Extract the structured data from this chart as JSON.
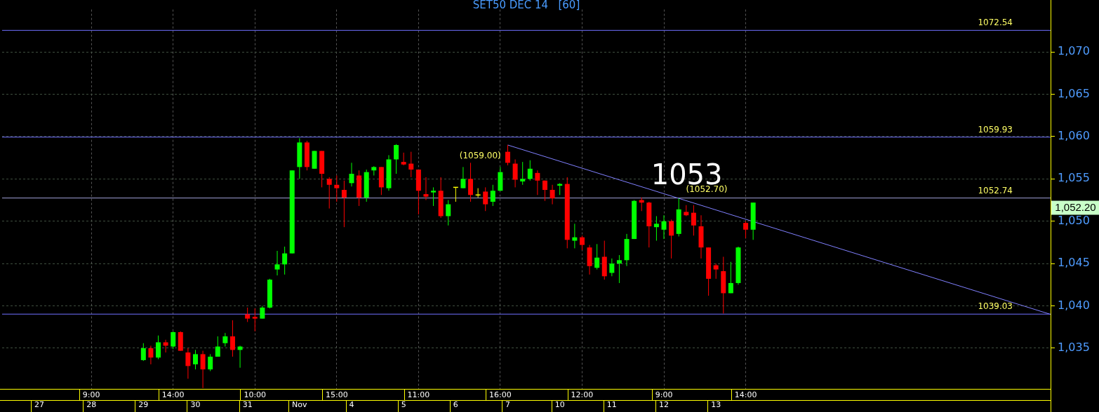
{
  "chart_data": {
    "type": "candlestick",
    "title": "SET50 DEC 14   [60]",
    "categories": [
      null,
      null,
      null,
      null,
      null,
      "\n27",
      null,
      null,
      null,
      null,
      null,
      null,
      "9:00\n28",
      null,
      null,
      null,
      null,
      null,
      null,
      "\n29",
      null,
      null,
      null,
      "14:00",
      null,
      null,
      "\n30",
      null,
      null,
      null,
      null,
      null,
      null,
      "\n31",
      "10:00",
      null,
      null,
      null,
      null,
      null,
      "\nNov",
      null,
      null,
      null,
      null,
      "15:00",
      null,
      "\n4",
      null,
      null,
      null,
      null,
      null,
      null,
      "\n5",
      null,
      "11:00",
      null,
      null,
      null,
      null,
      "\n6",
      null,
      null,
      null,
      null,
      null,
      "16:00",
      "\n7",
      null,
      null,
      null,
      null,
      null,
      null,
      "\n10",
      null,
      null,
      "12:00",
      null,
      null,
      null,
      "\n11",
      null,
      null,
      null,
      null,
      null,
      null,
      "9:00\n12",
      null,
      null,
      null,
      null,
      null,
      null,
      "\n13",
      null,
      null,
      null,
      "14:00",
      null,
      null,
      null,
      null,
      null,
      null,
      null,
      null,
      null,
      null,
      null,
      null,
      null,
      null,
      null,
      null,
      null,
      null,
      null,
      null,
      null,
      null,
      null,
      null,
      null,
      null,
      null,
      null,
      null,
      null,
      null,
      null,
      null,
      null,
      null,
      null,
      null,
      null,
      null,
      null,
      null
    ],
    "series": [
      {
        "type": "line",
        "color": "#8080ff",
        "values": [
          null,
          null,
          null,
          null,
          null,
          null,
          null,
          null,
          null,
          null,
          null,
          null,
          null,
          null,
          null,
          null,
          null,
          null,
          null,
          null,
          null,
          null,
          null,
          null,
          null,
          null,
          null,
          null,
          null,
          null,
          null,
          null,
          null,
          null,
          null,
          null,
          null,
          null,
          null,
          null,
          null,
          null,
          null,
          null,
          null,
          null,
          null,
          null,
          null,
          null,
          null,
          null,
          null,
          null,
          null,
          null,
          null,
          null,
          null,
          null,
          null,
          null,
          null,
          null,
          null,
          null,
          null,
          null,
          1059.0,
          null,
          null,
          null,
          null,
          null,
          null,
          null,
          null,
          null,
          null,
          null,
          null,
          null,
          null,
          null,
          null,
          null,
          null,
          null,
          null,
          null,
          null,
          null,
          null,
          null,
          null,
          null,
          null,
          null,
          null,
          null,
          null,
          null,
          null,
          null,
          null,
          null,
          null,
          null,
          null,
          null,
          null,
          null,
          null,
          null,
          null,
          null,
          null,
          null,
          null,
          null,
          null,
          null,
          null,
          null,
          null,
          null,
          null,
          null,
          null,
          null,
          null,
          null,
          null,
          null,
          null,
          null,
          null,
          null,
          null,
          null,
          null,
          1039.0
        ]
      },
      {
        "type": "candlestick",
        "ohlc": [
          null,
          null,
          null,
          null,
          null,
          null,
          null,
          null,
          null,
          null,
          null,
          null,
          null,
          null,
          null,
          null,
          null,
          null,
          null,
          [
            1033.6,
            1035.6,
            1033.5,
            1035.0
          ],
          [
            1035.0,
            1035.3,
            1033.1,
            1033.9
          ],
          [
            1033.9,
            1036.5,
            1033.7,
            1035.7
          ],
          [
            1035.7,
            1036.0,
            1034.5,
            1035.3
          ],
          [
            1035.2,
            1037.0,
            1034.9,
            1036.9
          ],
          [
            1036.9,
            1037.0,
            1034.7,
            1034.7
          ],
          [
            1034.5,
            1035.0,
            1031.4,
            1032.9
          ],
          [
            1033.1,
            1034.8,
            1032.5,
            1034.3
          ],
          [
            1034.3,
            1034.7,
            1030.3,
            1032.5
          ],
          [
            1032.5,
            1034.3,
            1032.3,
            1034.0
          ],
          [
            1034.0,
            1036.4,
            1034.0,
            1035.2
          ],
          [
            1035.6,
            1036.8,
            1035.2,
            1036.4
          ],
          [
            1036.4,
            1038.3,
            1034.0,
            1034.8
          ],
          [
            1034.8,
            1035.3,
            1032.7,
            1035.2
          ],
          [
            1039.0,
            1039.8,
            1038.1,
            1038.5
          ],
          [
            1038.7,
            1039.7,
            1037.0,
            1038.5
          ],
          [
            1038.5,
            1040.0,
            1038.5,
            1039.8
          ],
          [
            1039.8,
            1043.2,
            1039.7,
            1043.1
          ],
          [
            1044.3,
            1046.5,
            1043.6,
            1044.9
          ],
          [
            1044.9,
            1047.0,
            1043.7,
            1046.2
          ],
          [
            1046.2,
            1056.0,
            1046.2,
            1056.0
          ],
          [
            1056.4,
            1059.8,
            1055.0,
            1059.3
          ],
          [
            1059.3,
            1059.5,
            1056.0,
            1056.4
          ],
          [
            1056.2,
            1058.3,
            1056.2,
            1058.3
          ],
          [
            1058.3,
            1058.3,
            1054.0,
            1055.6
          ],
          [
            1055.0,
            1055.2,
            1051.5,
            1054.3
          ],
          [
            1054.3,
            1055.4,
            1052.3,
            1053.9
          ],
          [
            1053.7,
            1054.8,
            1049.3,
            1052.8
          ],
          [
            1054.5,
            1056.9,
            1054.1,
            1055.6
          ],
          [
            1055.4,
            1056.0,
            1051.8,
            1052.8
          ],
          [
            1052.8,
            1056.1,
            1052.3,
            1055.8
          ],
          [
            1056.0,
            1056.5,
            1055.4,
            1056.4
          ],
          [
            1056.4,
            1056.4,
            1053.1,
            1054.0
          ],
          [
            1053.9,
            1057.8,
            1053.6,
            1057.3
          ],
          [
            1057.3,
            1059.1,
            1055.6,
            1059.0
          ],
          [
            1057.0,
            1058.1,
            1056.6,
            1056.7
          ],
          [
            1056.8,
            1058.2,
            1055.2,
            1056.1
          ],
          [
            1056.1,
            1056.1,
            1050.8,
            1053.6
          ],
          [
            1053.2,
            1055.2,
            1052.5,
            1052.9
          ],
          [
            1053.4,
            1054.0,
            1051.8,
            1053.6
          ],
          [
            1053.6,
            1055.2,
            1050.4,
            1050.6
          ],
          [
            1050.6,
            1052.5,
            1049.5,
            1052.0
          ],
          [
            1054.0,
            1054.0,
            1052.3,
            1054.0
          ],
          [
            1053.9,
            1056.4,
            1053.9,
            1055.0
          ],
          [
            1055.0,
            1056.9,
            1052.3,
            1053.1
          ],
          [
            1053.1,
            1053.9,
            1052.8,
            1053.1
          ],
          [
            1053.5,
            1054.0,
            1051.2,
            1052.0
          ],
          [
            1052.3,
            1054.3,
            1051.8,
            1053.6
          ],
          [
            1053.6,
            1056.4,
            1053.6,
            1055.8
          ],
          [
            1058.2,
            1059.0,
            1056.6,
            1056.9
          ],
          [
            1056.8,
            1057.3,
            1054.0,
            1054.9
          ],
          [
            1054.7,
            1057.0,
            1054.3,
            1055.0
          ],
          [
            1055.0,
            1057.2,
            1054.8,
            1056.2
          ],
          [
            1055.7,
            1056.0,
            1053.1,
            1054.8
          ],
          [
            1054.8,
            1054.8,
            1052.4,
            1053.7
          ],
          [
            1053.7,
            1054.3,
            1052.0,
            1052.7
          ],
          [
            1054.2,
            1054.5,
            1053.1,
            1054.4
          ],
          [
            1054.4,
            1055.2,
            1046.8,
            1047.8
          ],
          [
            1047.7,
            1049.7,
            1046.8,
            1048.1
          ],
          [
            1048.1,
            1048.3,
            1046.6,
            1047.2
          ],
          [
            1046.9,
            1047.2,
            1043.7,
            1044.7
          ],
          [
            1044.5,
            1047.3,
            1044.3,
            1045.7
          ],
          [
            1045.8,
            1047.7,
            1043.1,
            1043.5
          ],
          [
            1043.9,
            1045.6,
            1043.5,
            1045.0
          ],
          [
            1045.0,
            1046.0,
            1042.7,
            1045.4
          ],
          [
            1045.4,
            1048.5,
            1044.7,
            1047.9
          ],
          [
            1047.9,
            1052.5,
            1047.9,
            1052.4
          ],
          [
            1052.5,
            1052.8,
            1051.2,
            1052.2
          ],
          [
            1052.2,
            1052.3,
            1046.9,
            1049.4
          ],
          [
            1049.3,
            1050.6,
            1047.7,
            1049.7
          ],
          [
            1049.0,
            1050.7,
            1047.9,
            1050.0
          ],
          [
            1050.0,
            1050.2,
            1045.6,
            1048.3
          ],
          [
            1048.5,
            1052.7,
            1048.2,
            1051.4
          ],
          [
            1051.1,
            1051.9,
            1050.6,
            1050.7
          ],
          [
            1051.0,
            1051.9,
            1048.3,
            1049.5
          ],
          [
            1049.4,
            1050.7,
            1045.6,
            1046.9
          ],
          [
            1046.9,
            1046.9,
            1041.2,
            1043.2
          ],
          [
            1044.8,
            1045.0,
            1043.2,
            1044.3
          ],
          [
            1044.1,
            1045.8,
            1039.1,
            1041.5
          ],
          [
            1041.5,
            1045.2,
            1041.5,
            1042.7
          ],
          [
            1042.7,
            1047.0,
            1042.5,
            1046.9
          ],
          [
            1049.8,
            1050.0,
            1048.0,
            1049.0
          ],
          [
            1049.0,
            1052.2,
            1047.8,
            1052.2
          ],
          null,
          null,
          null,
          null,
          null,
          null,
          null,
          null,
          null,
          null,
          null,
          null,
          null,
          null,
          null,
          null,
          null,
          null,
          null,
          null,
          null,
          null,
          null,
          null,
          null,
          null,
          null,
          null,
          null,
          null,
          null,
          null,
          null,
          null,
          null,
          null,
          null,
          null,
          null,
          null
        ],
        "colors": [
          null,
          null,
          null,
          null,
          null,
          null,
          null,
          null,
          null,
          null,
          null,
          null,
          null,
          null,
          null,
          null,
          null,
          null,
          null,
          "#00ff00",
          "#ff0000",
          "#00ff00",
          "#ff0000",
          "#00ff00",
          "#ff0000",
          "#ff0000",
          "#00ff00",
          "#ff0000",
          "#00ff00",
          "#00ff00",
          "#00ff00",
          "#ff0000",
          "#00ff00",
          "#ff0000",
          "#ff0000",
          "#00ff00",
          "#00ff00",
          "#00ff00",
          "#00ff00",
          "#00ff00",
          "#00ff00",
          "#ff0000",
          "#00ff00",
          "#ff0000",
          "#ff0000",
          "#ff0000",
          "#ff0000",
          "#00ff00",
          "#ff0000",
          "#00ff00",
          "#00ff00",
          "#ff0000",
          "#00ff00",
          "#00ff00",
          "#ff0000",
          "#ff0000",
          "#ff0000",
          "#ff0000",
          "#00ff00",
          "#ff0000",
          "#00ff00",
          "#ffff00",
          "#00ff00",
          "#ff0000",
          "#ffff00",
          "#ff0000",
          "#00ff00",
          "#00ff00",
          "#ff0000",
          "#ff0000",
          "#00ff00",
          "#00ff00",
          "#ff0000",
          "#ff0000",
          "#ff0000",
          "#00ff00",
          "#ff0000",
          "#00ff00",
          "#ff0000",
          "#ff0000",
          "#00ff00",
          "#ff0000",
          "#00ff00",
          "#00ff00",
          "#00ff00",
          "#00ff00",
          "#ff0000",
          "#ff0000",
          "#00ff00",
          "#00ff00",
          "#ff0000",
          "#00ff00",
          "#ff0000",
          "#ff0000",
          "#ff0000",
          "#ff0000",
          "#ff0000",
          "#ff0000",
          "#00ff00",
          "#00ff00",
          "#ff0000",
          "#00ff00",
          null,
          null,
          null,
          null,
          null,
          null,
          null,
          null,
          null,
          null,
          null,
          null,
          null,
          null,
          null,
          null,
          null,
          null,
          null,
          null,
          null,
          null,
          null,
          null,
          null,
          null,
          null,
          null,
          null,
          null,
          null,
          null,
          null,
          null,
          null,
          null,
          null,
          null,
          null,
          null
        ]
      }
    ],
    "ylim": [
      1030.2,
      1075.0
    ],
    "yticks": [
      {
        "value": 1035,
        "label": "1,035"
      },
      {
        "value": 1040,
        "label": "1,040"
      },
      {
        "value": 1045,
        "label": "1,045"
      },
      {
        "value": 1050,
        "label": "1,050"
      },
      {
        "value": 1055,
        "label": "1,055"
      },
      {
        "value": 1060,
        "label": "1,060"
      },
      {
        "value": 1065,
        "label": "1,065"
      },
      {
        "value": 1070,
        "label": "1,070"
      }
    ],
    "grid": true,
    "marker": "none",
    "ref_lines": [
      {
        "axis": "y",
        "value": 1072.54,
        "label": "1072.54",
        "color": "#7070ff"
      },
      {
        "axis": "y",
        "value": 1059.93,
        "label": "1059.93",
        "color": "#7070ff"
      },
      {
        "axis": "y",
        "value": 1052.74,
        "label": "1052.74",
        "color": "#a0a0d8"
      },
      {
        "axis": "y",
        "value": 1039.03,
        "label": "1039.03",
        "color": "#7070ff"
      }
    ],
    "annotations": [
      "1053",
      "(1059.00)",
      "(1052.70)",
      "1,052.20"
    ]
  }
}
